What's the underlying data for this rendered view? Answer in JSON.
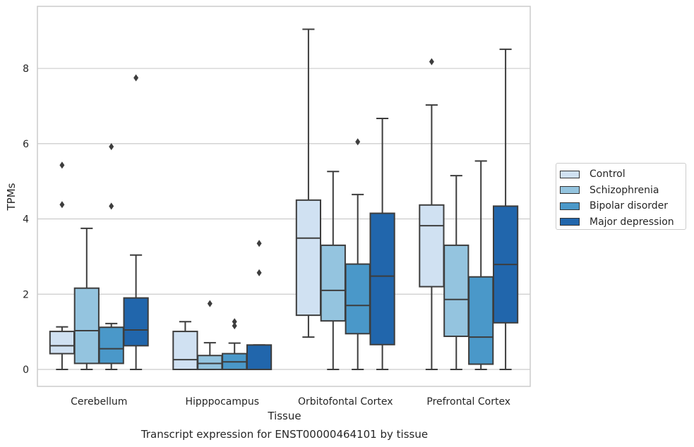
{
  "chart_data": {
    "type": "box",
    "caption": "Transcript expression for ENST00000464101 by tissue",
    "xlabel": "Tissue",
    "ylabel": "TPMs",
    "ylim": [
      -0.45,
      9.65
    ],
    "yticks": [
      0,
      2,
      4,
      6,
      8
    ],
    "categories": [
      "Cerebellum",
      "Hipppocampus",
      "Orbitofontal Cortex",
      "Prefrontal Cortex"
    ],
    "grid": "horizontal",
    "legend_position": "right",
    "series": [
      {
        "name": "Control",
        "color": "#d0e1f2",
        "boxes": [
          {
            "whislo": 0.0,
            "q1": 0.42,
            "med": 0.63,
            "q3": 1.01,
            "whishi": 1.13,
            "fliers": [
              5.43,
              4.38
            ]
          },
          {
            "whislo": 0.0,
            "q1": 0.0,
            "med": 0.26,
            "q3": 1.01,
            "whishi": 1.27,
            "fliers": []
          },
          {
            "whislo": 0.86,
            "q1": 1.44,
            "med": 3.49,
            "q3": 4.5,
            "whishi": 9.04,
            "fliers": []
          },
          {
            "whislo": 0.0,
            "q1": 2.2,
            "med": 3.82,
            "q3": 4.37,
            "whishi": 7.03,
            "fliers": [
              8.18
            ]
          }
        ]
      },
      {
        "name": "Schizophrenia",
        "color": "#94c4df",
        "boxes": [
          {
            "whislo": 0.0,
            "q1": 0.16,
            "med": 1.03,
            "q3": 2.16,
            "whishi": 3.75,
            "fliers": []
          },
          {
            "whislo": 0.0,
            "q1": 0.0,
            "med": 0.16,
            "q3": 0.37,
            "whishi": 0.71,
            "fliers": [
              1.75
            ]
          },
          {
            "whislo": 0.0,
            "q1": 1.29,
            "med": 2.1,
            "q3": 3.3,
            "whishi": 5.26,
            "fliers": []
          },
          {
            "whislo": 0.0,
            "q1": 0.88,
            "med": 1.86,
            "q3": 3.3,
            "whishi": 5.15,
            "fliers": []
          }
        ]
      },
      {
        "name": "Bipolar disorder",
        "color": "#4a98c9",
        "boxes": [
          {
            "whislo": 0.0,
            "q1": 0.16,
            "med": 0.55,
            "q3": 1.12,
            "whishi": 1.22,
            "fliers": [
              5.92,
              4.34
            ]
          },
          {
            "whislo": 0.0,
            "q1": 0.0,
            "med": 0.2,
            "q3": 0.42,
            "whishi": 0.7,
            "fliers": [
              1.27,
              1.16
            ]
          },
          {
            "whislo": 0.0,
            "q1": 0.95,
            "med": 1.7,
            "q3": 2.8,
            "whishi": 4.65,
            "fliers": [
              6.05
            ]
          },
          {
            "whislo": 0.0,
            "q1": 0.14,
            "med": 0.86,
            "q3": 2.46,
            "whishi": 5.54,
            "fliers": []
          }
        ]
      },
      {
        "name": "Major depression",
        "color": "#2166ac",
        "boxes": [
          {
            "whislo": 0.0,
            "q1": 0.63,
            "med": 1.05,
            "q3": 1.9,
            "whishi": 3.04,
            "fliers": [
              7.75
            ]
          },
          {
            "whislo": 0.0,
            "q1": 0.0,
            "med": 0.0,
            "q3": 0.65,
            "whishi": 0.65,
            "fliers": [
              3.35,
              2.57
            ]
          },
          {
            "whislo": 0.0,
            "q1": 0.66,
            "med": 2.48,
            "q3": 4.15,
            "whishi": 6.67,
            "fliers": []
          },
          {
            "whislo": 0.0,
            "q1": 1.24,
            "med": 2.79,
            "q3": 4.34,
            "whishi": 8.51,
            "fliers": []
          }
        ]
      }
    ]
  }
}
